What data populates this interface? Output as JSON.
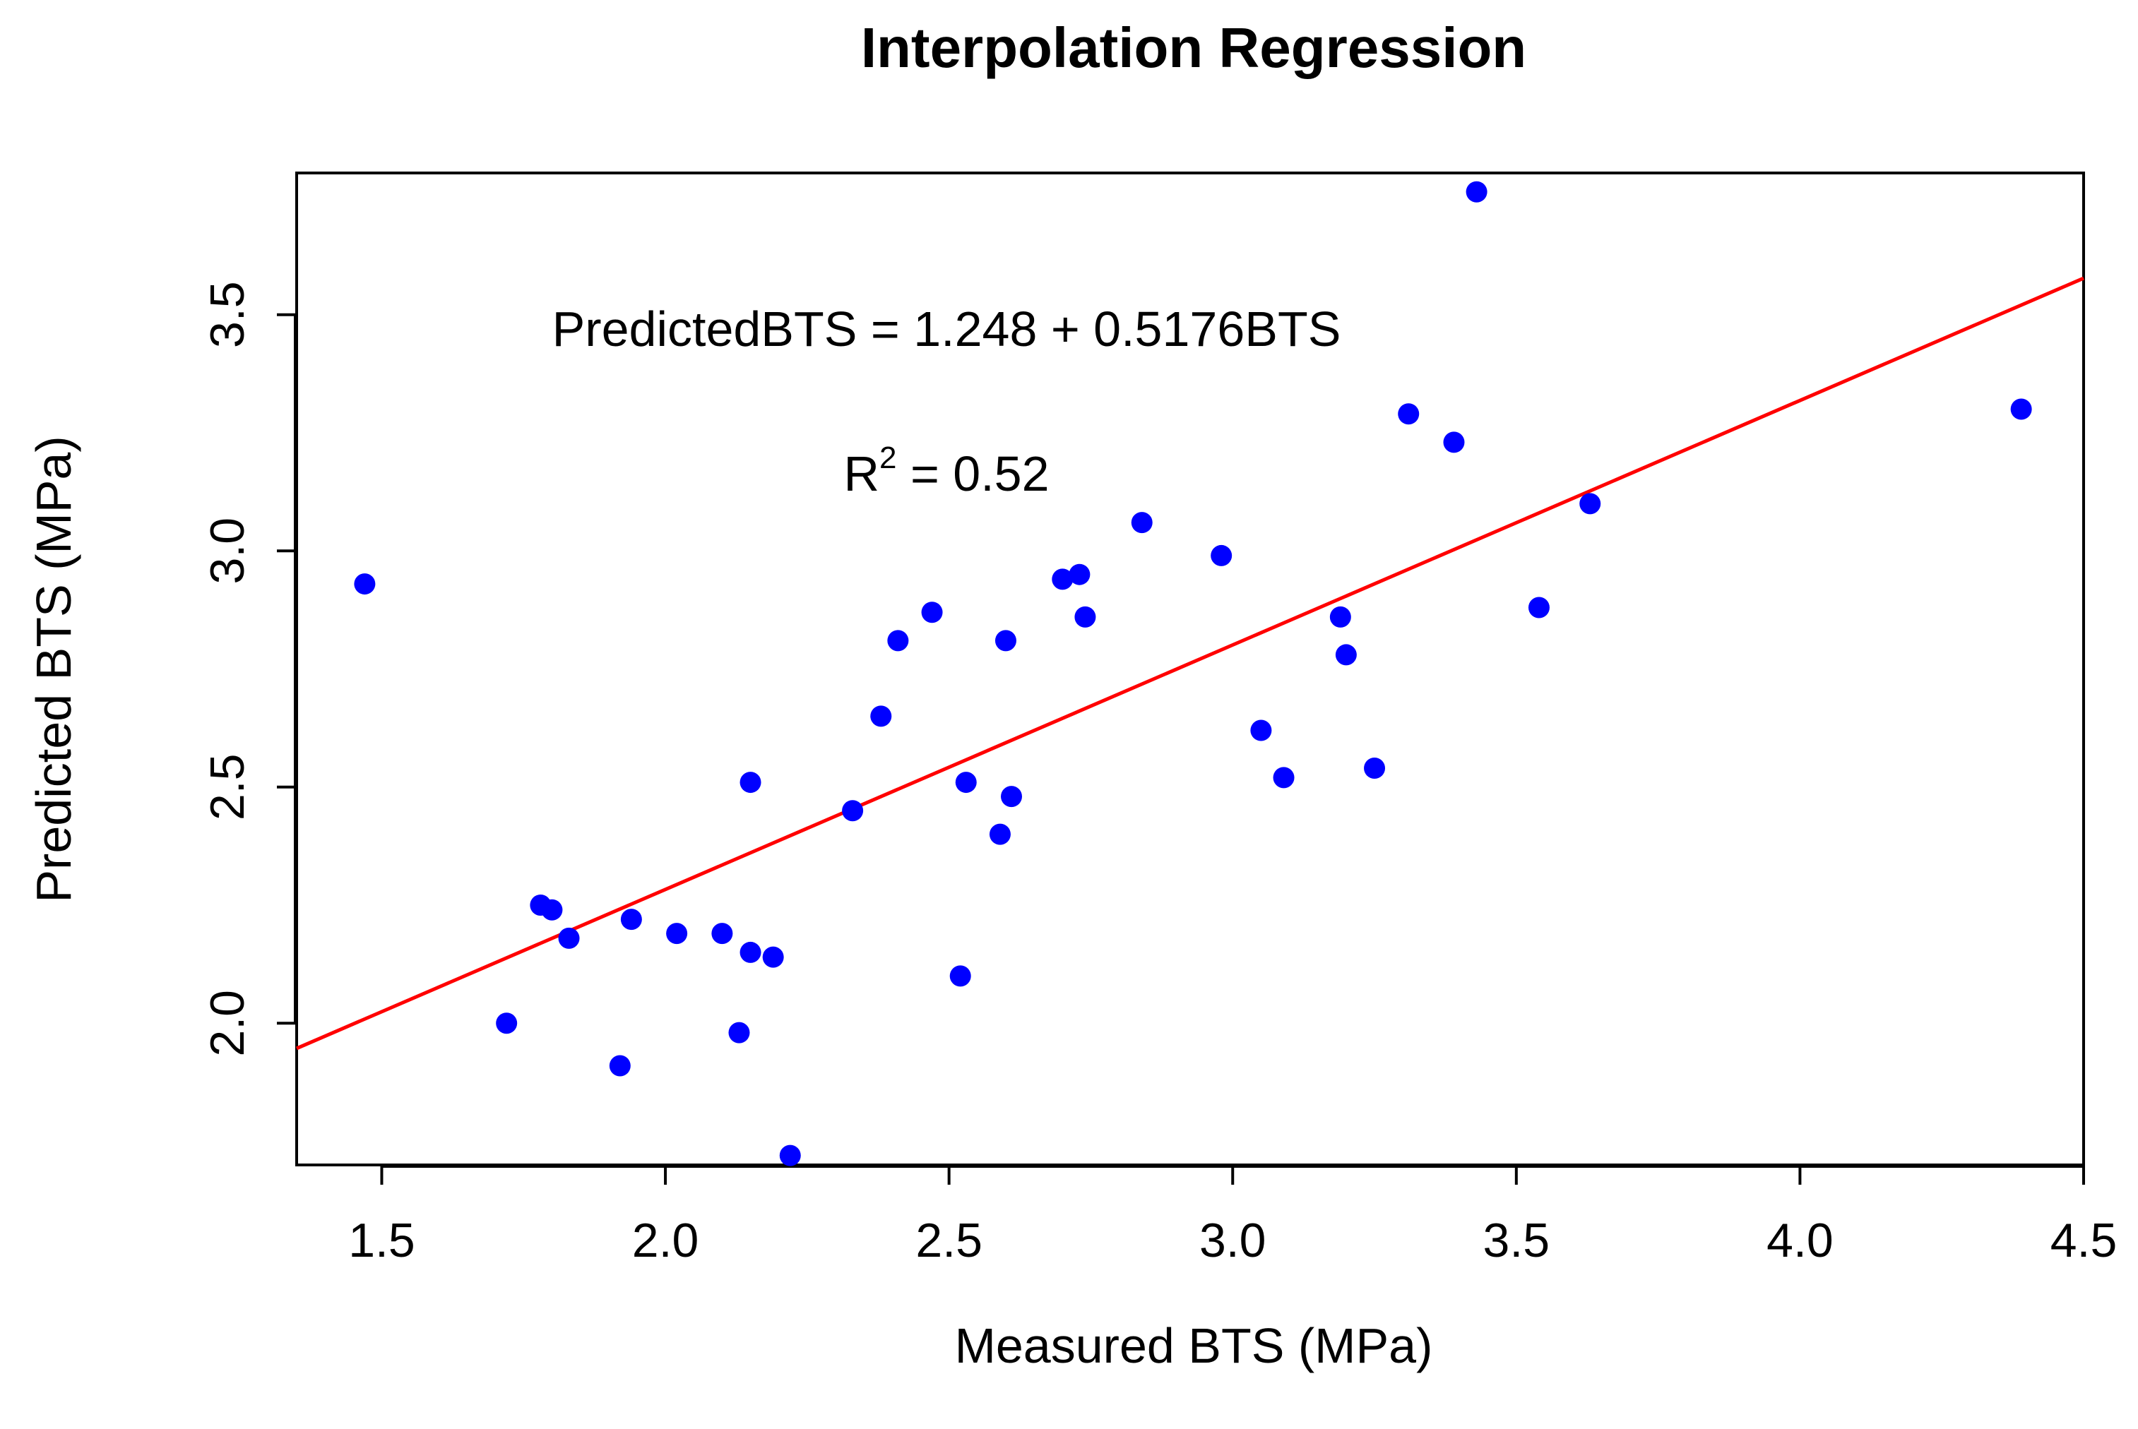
{
  "chart_data": {
    "type": "scatter",
    "title": "Interpolation Regression",
    "xlabel": "Measured BTS (MPa)",
    "ylabel": "Predicted BTS (MPa)",
    "xlim": [
      1.35,
      4.5
    ],
    "ylim": [
      1.7,
      3.8
    ],
    "xticks": [
      "1.5",
      "2.0",
      "2.5",
      "3.0",
      "3.5",
      "4.0",
      "4.5"
    ],
    "yticks": [
      "2.0",
      "2.5",
      "3.0",
      "3.5"
    ],
    "grid": false,
    "series": [
      {
        "name": "observations",
        "color": "#0000ff",
        "points": [
          [
            1.47,
            2.93
          ],
          [
            1.72,
            2.0
          ],
          [
            1.78,
            2.25
          ],
          [
            1.8,
            2.24
          ],
          [
            1.83,
            2.18
          ],
          [
            1.92,
            1.91
          ],
          [
            1.94,
            2.22
          ],
          [
            2.02,
            2.19
          ],
          [
            2.1,
            2.19
          ],
          [
            2.13,
            1.98
          ],
          [
            2.15,
            2.15
          ],
          [
            2.15,
            2.51
          ],
          [
            2.19,
            2.14
          ],
          [
            2.22,
            1.72
          ],
          [
            2.33,
            2.45
          ],
          [
            2.38,
            2.65
          ],
          [
            2.41,
            2.81
          ],
          [
            2.47,
            2.87
          ],
          [
            2.52,
            2.1
          ],
          [
            2.53,
            2.51
          ],
          [
            2.59,
            2.4
          ],
          [
            2.6,
            2.81
          ],
          [
            2.61,
            2.48
          ],
          [
            2.7,
            2.94
          ],
          [
            2.73,
            2.95
          ],
          [
            2.74,
            2.86
          ],
          [
            2.84,
            3.06
          ],
          [
            2.98,
            2.99
          ],
          [
            3.05,
            2.62
          ],
          [
            3.09,
            2.52
          ],
          [
            3.19,
            2.86
          ],
          [
            3.2,
            2.78
          ],
          [
            3.25,
            2.54
          ],
          [
            3.31,
            3.29
          ],
          [
            3.39,
            3.23
          ],
          [
            3.43,
            3.76
          ],
          [
            3.54,
            2.88
          ],
          [
            3.63,
            3.1
          ],
          [
            4.39,
            3.3
          ]
        ]
      }
    ],
    "regression": {
      "name": "fit",
      "color": "#ff0000",
      "intercept": 1.248,
      "slope": 0.5176,
      "x_range": [
        1.35,
        4.5
      ]
    },
    "annotations": {
      "equation": "PredictedBTS = 1.248 + 0.5176BTS",
      "r2_prefix": "R",
      "r2_superscript": "2",
      "r2_rest": " = 0.52"
    }
  }
}
